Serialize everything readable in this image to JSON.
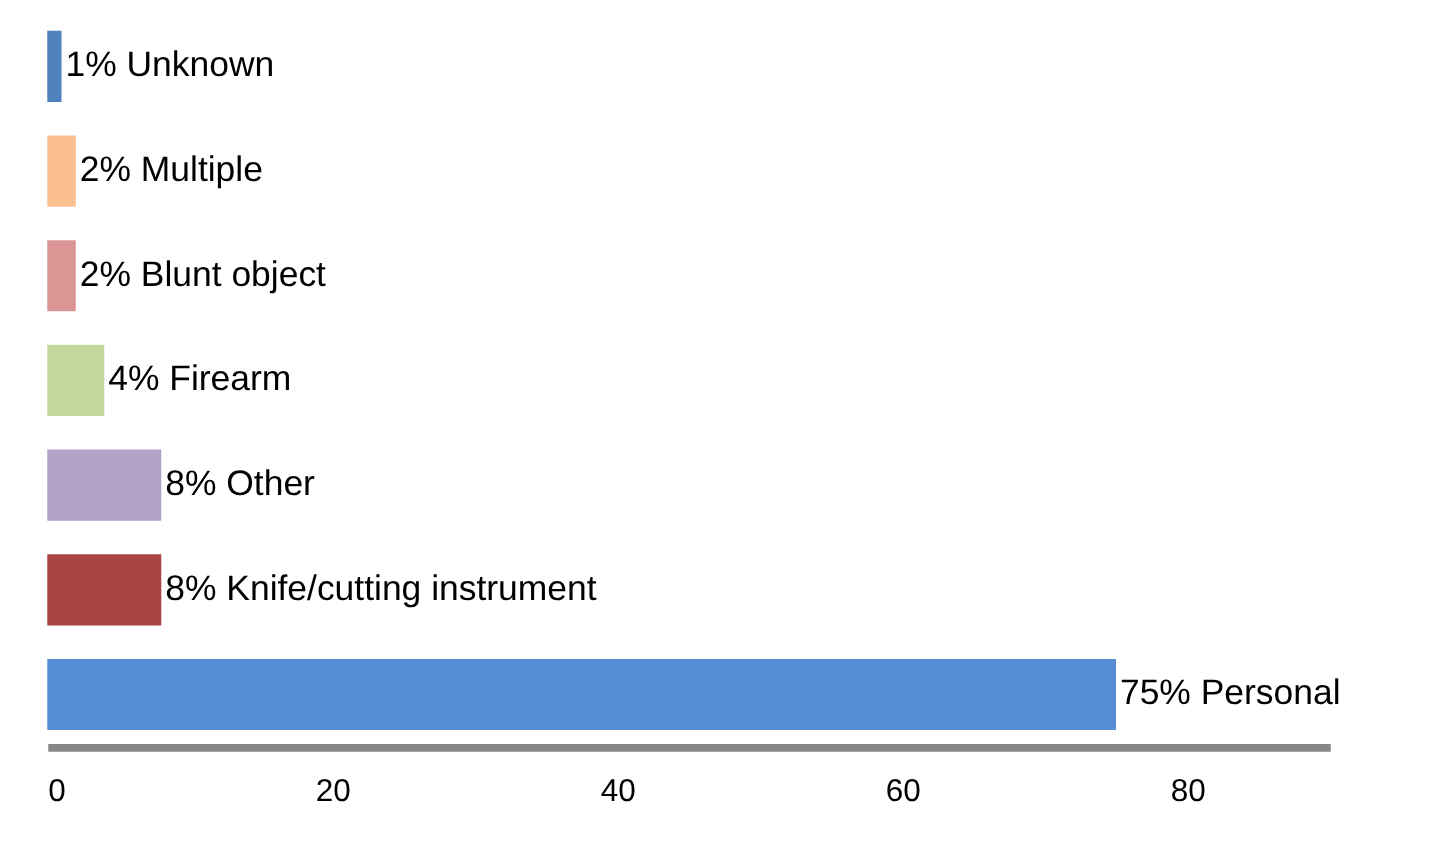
{
  "chart_data": {
    "type": "bar",
    "orientation": "horizontal",
    "categories": [
      null,
      null,
      null,
      null,
      null,
      null,
      null
    ],
    "values": [
      1,
      2,
      2,
      4,
      8,
      8,
      75
    ],
    "colors": [
      "#4f81bd",
      "#fac090",
      "#d99694",
      "#c3d69b",
      "#b3a2c7",
      "#a94442",
      "#558ed5"
    ],
    "value_labels": [
      "1%  Unknown",
      "2% Multiple",
      "2%  Blunt object",
      "4% Firearm",
      "8% Other",
      "8% Knife/cutting instrument",
      "75%  Personal"
    ],
    "xlim": [
      0,
      90
    ],
    "xticks": [
      0,
      20,
      40,
      60,
      80
    ],
    "grid": false
  }
}
